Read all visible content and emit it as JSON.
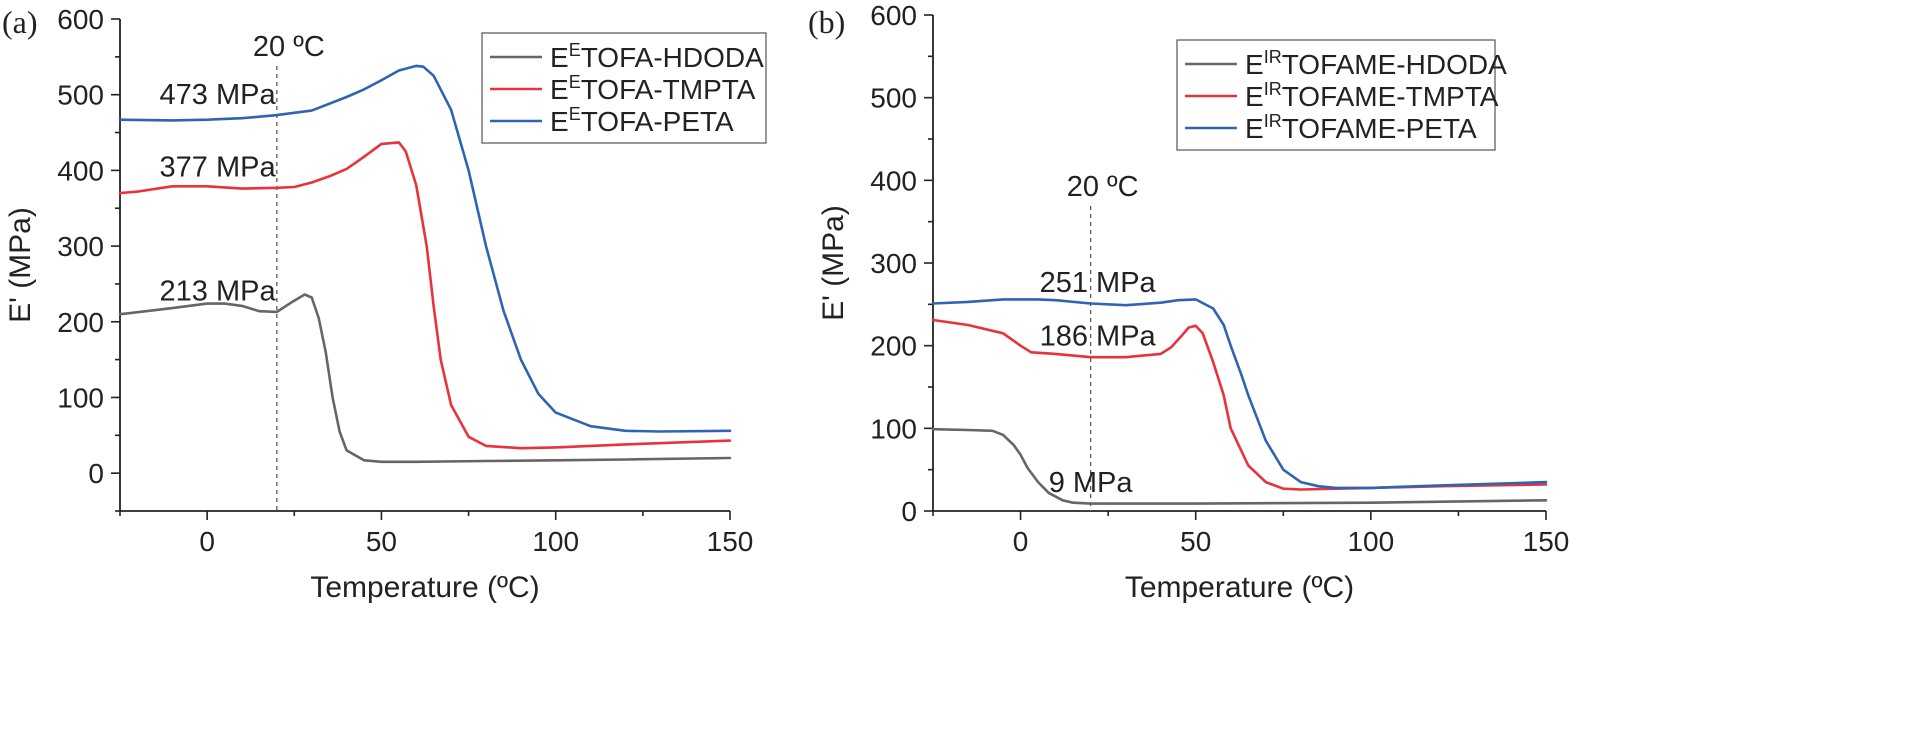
{
  "colors": {
    "gray": "#666666",
    "red": "#e8323c",
    "blue": "#2f64b4"
  },
  "chart_data": [
    {
      "panel_label": "(a)",
      "type": "line",
      "xlabel": "Temperature (ºC)",
      "ylabel": "E' (MPa)",
      "xlim": [
        -25,
        150
      ],
      "ylim": [
        -50,
        600
      ],
      "xticks": [
        0,
        50,
        100,
        150
      ],
      "xtick_labels": [
        "0",
        "50",
        "100",
        "150"
      ],
      "yticks": [
        0,
        100,
        200,
        300,
        400,
        500,
        600
      ],
      "ytick_labels": [
        "0",
        "100",
        "200",
        "300",
        "400",
        "500",
        "600"
      ],
      "legend_position": "top-right",
      "reference_line": {
        "x": 20,
        "label": "20 ºC"
      },
      "annotations": [
        {
          "text": "473 MPa",
          "x": 3,
          "y": 488
        },
        {
          "text": "377 MPa",
          "x": 3,
          "y": 392
        },
        {
          "text": "213 MPa",
          "x": 3,
          "y": 228
        }
      ],
      "series": [
        {
          "name_main": "E",
          "name_sup": "E",
          "name_rest": "TOFA-HDODA",
          "color": "gray",
          "x": [
            -25,
            -10,
            0,
            5,
            10,
            15,
            20,
            24,
            28,
            30,
            32,
            34,
            36,
            38,
            40,
            45,
            50,
            60,
            80,
            100,
            120,
            150
          ],
          "y": [
            210,
            218,
            224,
            224,
            221,
            214,
            213,
            225,
            236,
            232,
            205,
            160,
            100,
            55,
            30,
            17,
            15,
            15,
            16,
            17,
            18,
            20
          ]
        },
        {
          "name_main": "E",
          "name_sup": "E",
          "name_rest": "TOFA-TMPTA",
          "color": "red",
          "x": [
            -25,
            -20,
            -10,
            0,
            10,
            20,
            25,
            30,
            35,
            40,
            45,
            50,
            55,
            57,
            60,
            63,
            65,
            67,
            70,
            75,
            80,
            90,
            100,
            120,
            150
          ],
          "y": [
            370,
            372,
            379,
            379,
            376,
            377,
            378,
            384,
            392,
            402,
            418,
            435,
            437,
            425,
            380,
            300,
            220,
            150,
            90,
            48,
            36,
            33,
            34,
            38,
            43
          ],
          "note": ""
        },
        {
          "name_main": "E",
          "name_sup": "E",
          "name_rest": "TOFA-PETA",
          "color": "blue",
          "x": [
            -25,
            -10,
            0,
            10,
            20,
            30,
            40,
            45,
            50,
            55,
            60,
            62,
            65,
            70,
            75,
            80,
            85,
            90,
            95,
            100,
            110,
            120,
            130,
            150
          ],
          "y": [
            467,
            466,
            467,
            469,
            473,
            479,
            497,
            507,
            519,
            532,
            538,
            537,
            525,
            480,
            400,
            300,
            215,
            150,
            105,
            80,
            62,
            56,
            55,
            56
          ]
        }
      ]
    },
    {
      "panel_label": "(b)",
      "type": "line",
      "xlabel": "Temperature (ºC)",
      "ylabel": "E' (MPa)",
      "xlim": [
        -25,
        150
      ],
      "ylim": [
        0,
        600
      ],
      "xticks": [
        0,
        50,
        100,
        150
      ],
      "xtick_labels": [
        "0",
        "50",
        "100",
        "150"
      ],
      "yticks": [
        0,
        100,
        200,
        300,
        400,
        500,
        600
      ],
      "ytick_labels": [
        "0",
        "100",
        "200",
        "300",
        "400",
        "500",
        "600"
      ],
      "legend_position": "top-right",
      "reference_line": {
        "x": 20,
        "label": "20 ºC"
      },
      "annotations": [
        {
          "text": "251 MPa",
          "x": 22,
          "y": 265
        },
        {
          "text": "186 MPa",
          "x": 22,
          "y": 200
        },
        {
          "text": "9 MPa",
          "x": 20,
          "y": 23
        }
      ],
      "series": [
        {
          "name_main": "E",
          "name_sup": "IR",
          "name_rest": "TOFAME-HDODA",
          "color": "gray",
          "x": [
            -25,
            -15,
            -8,
            -5,
            -2,
            0,
            2,
            5,
            8,
            12,
            15,
            20,
            30,
            50,
            100,
            150
          ],
          "y": [
            99,
            98,
            97,
            92,
            80,
            68,
            52,
            35,
            22,
            13,
            10,
            9,
            9,
            9,
            10,
            13
          ]
        },
        {
          "name_main": "E",
          "name_sup": "IR",
          "name_rest": "TOFAME-TMPTA",
          "color": "red",
          "x": [
            -25,
            -15,
            -5,
            0,
            3,
            10,
            20,
            30,
            40,
            43,
            46,
            48,
            50,
            52,
            55,
            58,
            60,
            65,
            70,
            75,
            80,
            90,
            100,
            120,
            150
          ],
          "y": [
            231,
            225,
            215,
            200,
            192,
            190,
            186,
            186,
            190,
            198,
            212,
            222,
            224,
            215,
            180,
            140,
            100,
            55,
            35,
            27,
            26,
            27,
            28,
            30,
            32
          ]
        },
        {
          "name_main": "E",
          "name_sup": "IR",
          "name_rest": "TOFAME-PETA",
          "color": "blue",
          "x": [
            -25,
            -15,
            -5,
            0,
            5,
            10,
            20,
            30,
            40,
            45,
            50,
            55,
            58,
            60,
            63,
            65,
            70,
            75,
            80,
            85,
            90,
            95,
            100,
            120,
            150
          ],
          "y": [
            251,
            253,
            256,
            256,
            256,
            255,
            251,
            249,
            252,
            255,
            256,
            245,
            225,
            200,
            165,
            140,
            85,
            50,
            35,
            30,
            28,
            28,
            28,
            31,
            35
          ]
        }
      ]
    }
  ]
}
